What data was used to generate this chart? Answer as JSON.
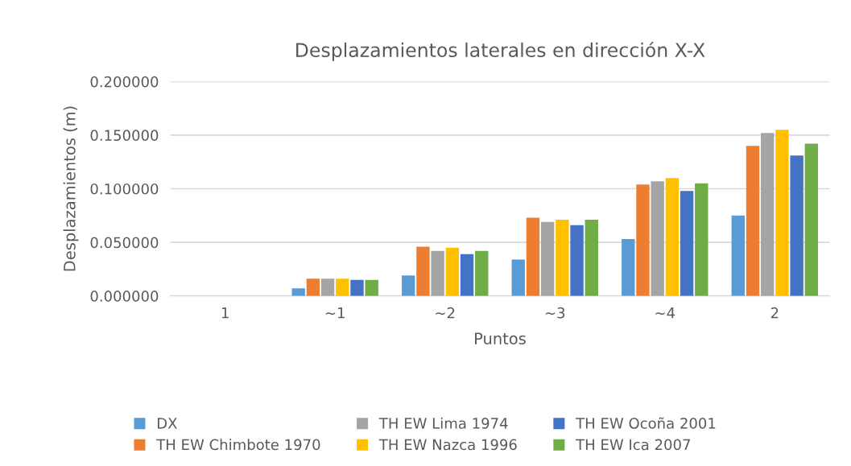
{
  "chart_data": {
    "type": "bar",
    "title": "Desplazamientos laterales en dirección X-X",
    "xlabel": "Puntos",
    "ylabel": "Desplazamientos (m)",
    "categories": [
      "1",
      "~1",
      "~2",
      "~3",
      "~4",
      "2"
    ],
    "series": [
      {
        "name": "DX",
        "color": "#5b9bd5",
        "values": [
          0,
          0.007,
          0.019,
          0.034,
          0.053,
          0.075
        ]
      },
      {
        "name": "TH EW Chimbote 1970",
        "color": "#ed7d31",
        "values": [
          0,
          0.016,
          0.046,
          0.073,
          0.104,
          0.14
        ]
      },
      {
        "name": "TH EW Lima 1974",
        "color": "#a5a5a5",
        "values": [
          0,
          0.016,
          0.042,
          0.069,
          0.107,
          0.152
        ]
      },
      {
        "name": "TH EW Nazca 1996",
        "color": "#ffc000",
        "values": [
          0,
          0.016,
          0.045,
          0.071,
          0.11,
          0.155
        ]
      },
      {
        "name": "TH EW Ocoña 2001",
        "color": "#4472c4",
        "values": [
          0,
          0.015,
          0.039,
          0.066,
          0.098,
          0.131
        ]
      },
      {
        "name": "TH EW Ica 2007",
        "color": "#70ad47",
        "values": [
          0,
          0.015,
          0.042,
          0.071,
          0.105,
          0.142
        ]
      }
    ],
    "ylim": [
      0,
      0.2
    ],
    "yticks": [
      {
        "value": 0,
        "label": "0.000000"
      },
      {
        "value": 0.05,
        "label": "0.050000"
      },
      {
        "value": 0.1,
        "label": "0.100000"
      },
      {
        "value": 0.15,
        "label": "0.150000"
      },
      {
        "value": 0.2,
        "label": "0.200000"
      }
    ],
    "grid": "y",
    "legend": "bottom"
  }
}
